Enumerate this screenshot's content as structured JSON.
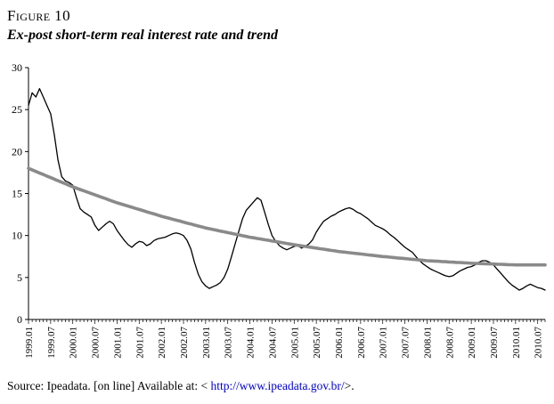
{
  "header": {
    "figure_label": "Figure 10",
    "figure_title": "Ex-post short-term real interest rate and trend"
  },
  "footer": {
    "prefix": "Source: Ipeadata. [on line] Available at: < ",
    "link": "http://www.ipeadata.gov.br/",
    "suffix": ">.",
    "link_color": "#0000cc"
  },
  "chart_data": {
    "type": "line",
    "title": "Ex-post short-term real interest rate and trend",
    "xlabel": "",
    "ylabel": "",
    "ylim": [
      0,
      30
    ],
    "y_ticks": [
      0,
      5,
      10,
      15,
      20,
      25,
      30
    ],
    "x_start": "1999.01",
    "x_frequency": "monthly",
    "x_tick_step_months": 6,
    "grid": false,
    "legend": "none",
    "x_tick_labels": [
      "1999.01",
      "1999.07",
      "2000.01",
      "2000.07",
      "2001.01",
      "2001.07",
      "2002.01",
      "2002.07",
      "2003.01",
      "2003.07",
      "2004.01",
      "2004.07",
      "2005.01",
      "2005.07",
      "2006.01",
      "2006.07",
      "2007.01",
      "2007.07",
      "2008.01",
      "2008.07",
      "2009.01",
      "2009.07",
      "2010.01",
      "2010.07"
    ],
    "series": [
      {
        "name": "Ex-post short-term real interest rate",
        "color": "#000000",
        "stroke_width": 1.3,
        "values": [
          25.5,
          27.0,
          26.5,
          27.5,
          26.5,
          25.5,
          24.5,
          22.0,
          19.0,
          17.0,
          16.5,
          16.3,
          16.0,
          14.5,
          13.2,
          12.8,
          12.5,
          12.2,
          11.2,
          10.6,
          11.0,
          11.4,
          11.7,
          11.4,
          10.6,
          10.0,
          9.4,
          8.9,
          8.6,
          9.0,
          9.3,
          9.2,
          8.8,
          9.0,
          9.4,
          9.6,
          9.7,
          9.8,
          10.0,
          10.2,
          10.3,
          10.2,
          10.0,
          9.4,
          8.4,
          6.8,
          5.4,
          4.5,
          4.0,
          3.7,
          3.9,
          4.1,
          4.4,
          5.0,
          6.0,
          7.5,
          9.0,
          10.5,
          12.0,
          13.0,
          13.5,
          14.0,
          14.5,
          14.2,
          12.8,
          11.3,
          10.0,
          9.3,
          8.8,
          8.5,
          8.3,
          8.5,
          8.7,
          8.8,
          8.5,
          8.7,
          9.0,
          9.5,
          10.4,
          11.1,
          11.7,
          12.0,
          12.3,
          12.5,
          12.8,
          13.0,
          13.2,
          13.3,
          13.1,
          12.8,
          12.6,
          12.3,
          12.0,
          11.6,
          11.2,
          11.0,
          10.8,
          10.5,
          10.1,
          9.8,
          9.4,
          9.0,
          8.6,
          8.3,
          8.0,
          7.5,
          7.0,
          6.6,
          6.3,
          6.0,
          5.8,
          5.6,
          5.4,
          5.2,
          5.1,
          5.2,
          5.5,
          5.8,
          6.0,
          6.2,
          6.3,
          6.5,
          6.8,
          7.0,
          7.0,
          6.8,
          6.5,
          6.0,
          5.5,
          5.0,
          4.5,
          4.1,
          3.8,
          3.5,
          3.7,
          4.0,
          4.2,
          4.0,
          3.8,
          3.7,
          3.5
        ]
      },
      {
        "name": "Trend",
        "color": "#8a8a8a",
        "stroke_width": 3.6,
        "values": [
          18.0,
          17.82,
          17.63,
          17.45,
          17.27,
          17.08,
          16.9,
          16.72,
          16.53,
          16.35,
          16.17,
          15.98,
          15.8,
          15.64,
          15.48,
          15.33,
          15.17,
          15.01,
          14.85,
          14.69,
          14.53,
          14.38,
          14.22,
          14.06,
          13.9,
          13.77,
          13.63,
          13.5,
          13.37,
          13.23,
          13.1,
          12.97,
          12.83,
          12.7,
          12.57,
          12.43,
          12.3,
          12.18,
          12.07,
          11.95,
          11.83,
          11.72,
          11.6,
          11.48,
          11.37,
          11.25,
          11.13,
          11.02,
          10.9,
          10.81,
          10.72,
          10.63,
          10.53,
          10.44,
          10.35,
          10.26,
          10.17,
          10.08,
          9.98,
          9.89,
          9.8,
          9.73,
          9.65,
          9.58,
          9.5,
          9.43,
          9.35,
          9.28,
          9.2,
          9.13,
          9.05,
          8.98,
          8.9,
          8.83,
          8.77,
          8.7,
          8.63,
          8.57,
          8.5,
          8.43,
          8.37,
          8.3,
          8.23,
          8.17,
          8.1,
          8.05,
          8.0,
          7.95,
          7.9,
          7.85,
          7.8,
          7.75,
          7.7,
          7.65,
          7.6,
          7.55,
          7.5,
          7.46,
          7.42,
          7.38,
          7.33,
          7.29,
          7.25,
          7.21,
          7.17,
          7.13,
          7.08,
          7.04,
          7.0,
          6.98,
          6.95,
          6.93,
          6.9,
          6.88,
          6.85,
          6.83,
          6.8,
          6.78,
          6.75,
          6.73,
          6.7,
          6.68,
          6.67,
          6.65,
          6.63,
          6.62,
          6.6,
          6.58,
          6.57,
          6.55,
          6.53,
          6.52,
          6.5,
          6.5,
          6.5,
          6.5,
          6.5,
          6.5,
          6.5,
          6.5,
          6.5
        ]
      }
    ]
  }
}
